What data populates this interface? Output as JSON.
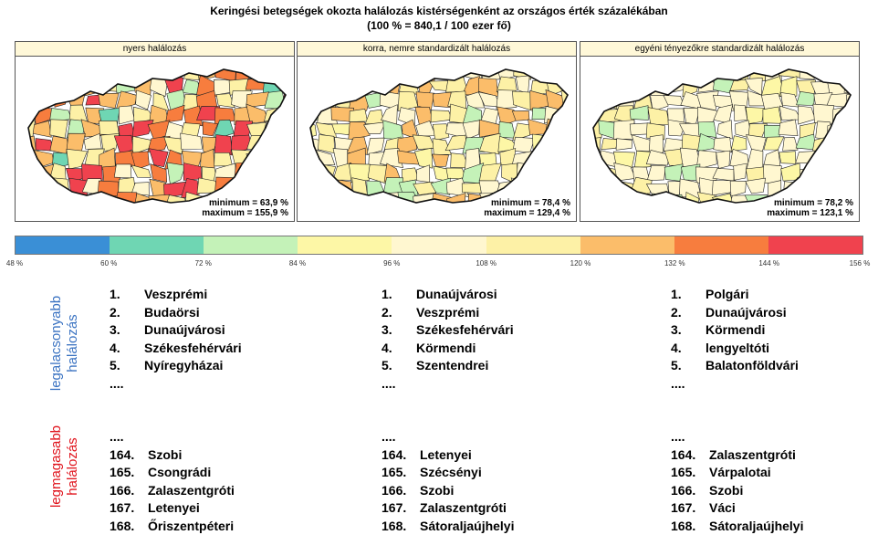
{
  "title": {
    "line1": "Keringési betegségek okozta halálozás kistérségenként az országos érték százalékában",
    "line2": "(100 % = 840,1 / 100 ezer fő)"
  },
  "panels": [
    {
      "header": "nyers halálozás",
      "minimum": "minimum = 63,9 %",
      "maximum": "maximum = 155,9 %",
      "map_style": "high-variance"
    },
    {
      "header": "korra, nemre standardizált halálozás",
      "minimum": "minimum = 78,4 %",
      "maximum": "maximum = 129,4 %",
      "map_style": "medium-variance"
    },
    {
      "header": "egyéni tényezőkre standardizált halálozás",
      "minimum": "minimum = 78,2 %",
      "maximum": "maximum = 123,1 %",
      "map_style": "low-variance"
    }
  ],
  "legend": {
    "colors": [
      "#3a8fd6",
      "#6fd6b3",
      "#c4f2b8",
      "#fdf7a6",
      "#fff7d0",
      "#fdf1a6",
      "#fbbd6a",
      "#f77d3e",
      "#f0424e"
    ],
    "ticks": [
      "48 %",
      "60 %",
      "72 %",
      "84 %",
      "96 %",
      "108 %",
      "120 %",
      "132 %",
      "144 %",
      "156 %"
    ]
  },
  "side_labels": {
    "lowest_line1": "legalacsonyabb",
    "lowest_line2": "halálozás",
    "highest_line1": "legmagasabb",
    "highest_line2": "halálozás"
  },
  "rankings": [
    {
      "lowest": [
        [
          "1.",
          "Veszprémi"
        ],
        [
          "2.",
          "Budaörsi"
        ],
        [
          "3.",
          "Dunaújvárosi"
        ],
        [
          "4.",
          "Székesfehérvári"
        ],
        [
          "5.",
          "Nyíregyházai"
        ]
      ],
      "ellipsis_top": "....",
      "ellipsis_bottom": "....",
      "highest": [
        [
          "164.",
          "Szobi"
        ],
        [
          "165.",
          "Csongrádi"
        ],
        [
          "166.",
          "Zalaszentgróti"
        ],
        [
          "167.",
          "Letenyei"
        ],
        [
          "168.",
          "Őriszentpéteri"
        ]
      ]
    },
    {
      "lowest": [
        [
          "1.",
          "Dunaújvárosi"
        ],
        [
          "2.",
          "Veszprémi"
        ],
        [
          "3.",
          "Székesfehérvári"
        ],
        [
          "4.",
          "Körmendi"
        ],
        [
          "5.",
          "Szentendrei"
        ]
      ],
      "ellipsis_top": "....",
      "ellipsis_bottom": "....",
      "highest": [
        [
          "164.",
          "Letenyei"
        ],
        [
          "165.",
          "Szécsényi"
        ],
        [
          "166.",
          "Szobi"
        ],
        [
          "167.",
          "Zalaszentgróti"
        ],
        [
          "168.",
          "Sátoraljaújhelyi"
        ]
      ]
    },
    {
      "lowest": [
        [
          "1.",
          "Polgári"
        ],
        [
          "2.",
          "Dunaújvárosi"
        ],
        [
          "3.",
          "Körmendi"
        ],
        [
          "4.",
          "lengyeltóti"
        ],
        [
          "5.",
          "Balatonföldvári"
        ]
      ],
      "ellipsis_top": "....",
      "ellipsis_bottom": "....",
      "highest": [
        [
          "164.",
          "Zalaszentgróti"
        ],
        [
          "165.",
          "Várpalotai"
        ],
        [
          "166.",
          "Szobi"
        ],
        [
          "167.",
          "Váci"
        ],
        [
          "168.",
          "Sátoraljaújhelyi"
        ]
      ]
    }
  ]
}
